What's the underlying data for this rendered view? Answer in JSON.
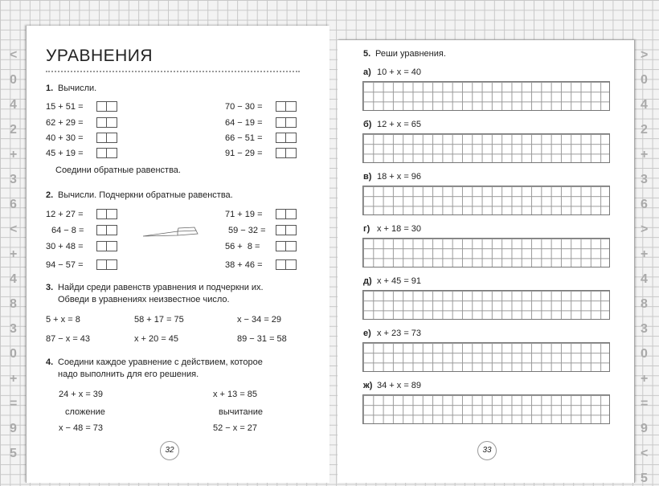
{
  "margin_symbols_left": [
    "<",
    "0",
    "4",
    "2",
    "+",
    "3",
    "6",
    "<",
    "+",
    "4",
    "8",
    "3",
    "0",
    "+",
    "=",
    "9",
    "5"
  ],
  "margin_symbols_right": [
    ">",
    "0",
    "4",
    "2",
    "+",
    "3",
    "6",
    ">",
    "+",
    "4",
    "8",
    "3",
    "0",
    "+",
    "=",
    "9",
    "<",
    "5"
  ],
  "left": {
    "title": "УРАВНЕНИЯ",
    "ex1": {
      "num": "1.",
      "text": "Вычисли.",
      "left": [
        "15 + 51 =",
        "62 + 29 =",
        "40 + 30 =",
        "45 + 19 ="
      ],
      "right": [
        "70 − 30 =",
        "64 − 19 =",
        "66 − 51 =",
        "91 − 29 ="
      ],
      "note": "Соедини обратные равенства."
    },
    "ex2": {
      "num": "2.",
      "text": "Вычисли. Подчеркни обратные равенства.",
      "left": [
        "12 + 27 =",
        "64 − 8 =",
        "30 + 48 =",
        "94 − 57 ="
      ],
      "right": [
        "71 + 19 =",
        "59 − 32 =",
        "56 +  8 =",
        "38 + 46 ="
      ]
    },
    "ex3": {
      "num": "3.",
      "line1": "Найди среди равенств уравнения и подчеркни их.",
      "line2": "Обведи в уравнениях неизвестное число.",
      "rows": [
        [
          "5 + x = 8",
          "58 + 17 = 75",
          "x − 34 = 29"
        ],
        [
          "87 − x = 43",
          "x + 20 = 45",
          "89 − 31 = 58"
        ]
      ]
    },
    "ex4": {
      "num": "4.",
      "line1": "Соедини каждое уравнение с действием, которое",
      "line2": "надо выполнить для его решения.",
      "left": [
        "24 + x = 39",
        "сложение",
        "x − 48 = 73"
      ],
      "right": [
        "x + 13 = 85",
        "вычитание",
        "52 − x = 27"
      ]
    },
    "page_number": "32"
  },
  "right": {
    "ex5": {
      "num": "5.",
      "text": "Реши уравнения.",
      "items": [
        {
          "label": "а)",
          "eq": "10 + x = 40"
        },
        {
          "label": "б)",
          "eq": "12 + x = 65"
        },
        {
          "label": "в)",
          "eq": "18 + x = 96"
        },
        {
          "label": "г)",
          "eq": "x + 18 = 30"
        },
        {
          "label": "д)",
          "eq": "x + 45 = 91"
        },
        {
          "label": "е)",
          "eq": "x + 23 = 73"
        },
        {
          "label": "ж)",
          "eq": "34 + x = 89"
        }
      ]
    },
    "page_number": "33"
  }
}
